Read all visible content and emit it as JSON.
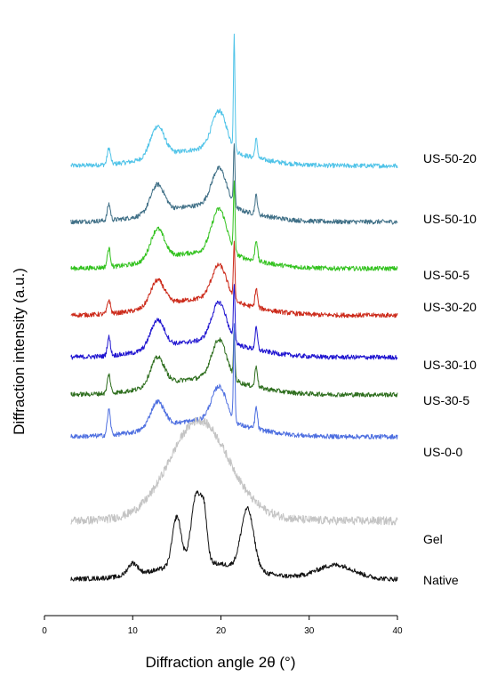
{
  "chart_data": {
    "type": "line",
    "xlabel": "Diffraction angle 2θ (°)",
    "ylabel": "Diffraction intensity  (a.u.)",
    "xlim": [
      0,
      40
    ],
    "xticks": [
      "0",
      "10",
      "20",
      "30",
      "40"
    ],
    "grid": false,
    "legend": "labels-right-of-curves",
    "series": [
      {
        "name": "US-50-20",
        "color": "#4fc3e8",
        "offset": 9.2,
        "peaks": [
          [
            7.3,
            0.35,
            0.25
          ],
          [
            12.8,
            0.65,
            1.1
          ],
          [
            19.8,
            0.85,
            1.2
          ],
          [
            21.5,
            2.4,
            0.12
          ],
          [
            24.0,
            0.4,
            0.2
          ]
        ]
      },
      {
        "name": "US-50-10",
        "color": "#3f6f86",
        "offset": 8.0,
        "peaks": [
          [
            7.3,
            0.35,
            0.25
          ],
          [
            12.8,
            0.6,
            1.1
          ],
          [
            19.8,
            0.82,
            1.2
          ],
          [
            21.5,
            1.3,
            0.12
          ],
          [
            24.0,
            0.4,
            0.2
          ]
        ]
      },
      {
        "name": "US-50-5",
        "color": "#32c21e",
        "offset": 7.0,
        "peaks": [
          [
            7.3,
            0.4,
            0.25
          ],
          [
            12.8,
            0.65,
            1.1
          ],
          [
            19.8,
            0.95,
            1.2
          ],
          [
            21.5,
            1.5,
            0.12
          ],
          [
            24.0,
            0.45,
            0.2
          ]
        ]
      },
      {
        "name": "US-30-20",
        "color": "#cc2a1a",
        "offset": 6.0,
        "peaks": [
          [
            7.3,
            0.3,
            0.25
          ],
          [
            12.8,
            0.55,
            1.1
          ],
          [
            19.8,
            0.75,
            1.2
          ],
          [
            21.5,
            1.2,
            0.12
          ],
          [
            24.0,
            0.4,
            0.2
          ]
        ]
      },
      {
        "name": "US-30-10",
        "color": "#1f14d0",
        "offset": 5.1,
        "peaks": [
          [
            7.3,
            0.4,
            0.25
          ],
          [
            12.8,
            0.6,
            1.1
          ],
          [
            19.8,
            0.85,
            1.2
          ],
          [
            21.5,
            1.2,
            0.12
          ],
          [
            24.0,
            0.45,
            0.2
          ]
        ]
      },
      {
        "name": "US-30-5",
        "color": "#2e6e1e",
        "offset": 4.3,
        "peaks": [
          [
            7.3,
            0.4,
            0.25
          ],
          [
            12.8,
            0.6,
            1.1
          ],
          [
            19.8,
            0.85,
            1.2
          ],
          [
            21.5,
            1.0,
            0.12
          ],
          [
            24.0,
            0.45,
            0.2
          ]
        ]
      },
      {
        "name": "US-0-0",
        "color": "#4e6fe0",
        "offset": 3.4,
        "peaks": [
          [
            7.3,
            0.55,
            0.25
          ],
          [
            12.8,
            0.55,
            1.1
          ],
          [
            19.8,
            0.75,
            1.2
          ],
          [
            21.5,
            2.0,
            0.12
          ],
          [
            24.0,
            0.45,
            0.2
          ]
        ]
      },
      {
        "name": "Gel",
        "color": "#c4c4c4",
        "offset": 1.6,
        "peaks": [
          [
            17.5,
            1.8,
            4.5
          ]
        ]
      },
      {
        "name": "Native",
        "color": "#111111",
        "offset": 0.35,
        "peaks": [
          [
            10.0,
            0.25,
            0.8
          ],
          [
            15.0,
            1.05,
            0.7
          ],
          [
            17.2,
            1.45,
            0.8
          ],
          [
            18.1,
            0.9,
            0.5
          ],
          [
            23.0,
            1.3,
            1.0
          ],
          [
            33.0,
            0.3,
            3.0
          ]
        ]
      }
    ]
  }
}
